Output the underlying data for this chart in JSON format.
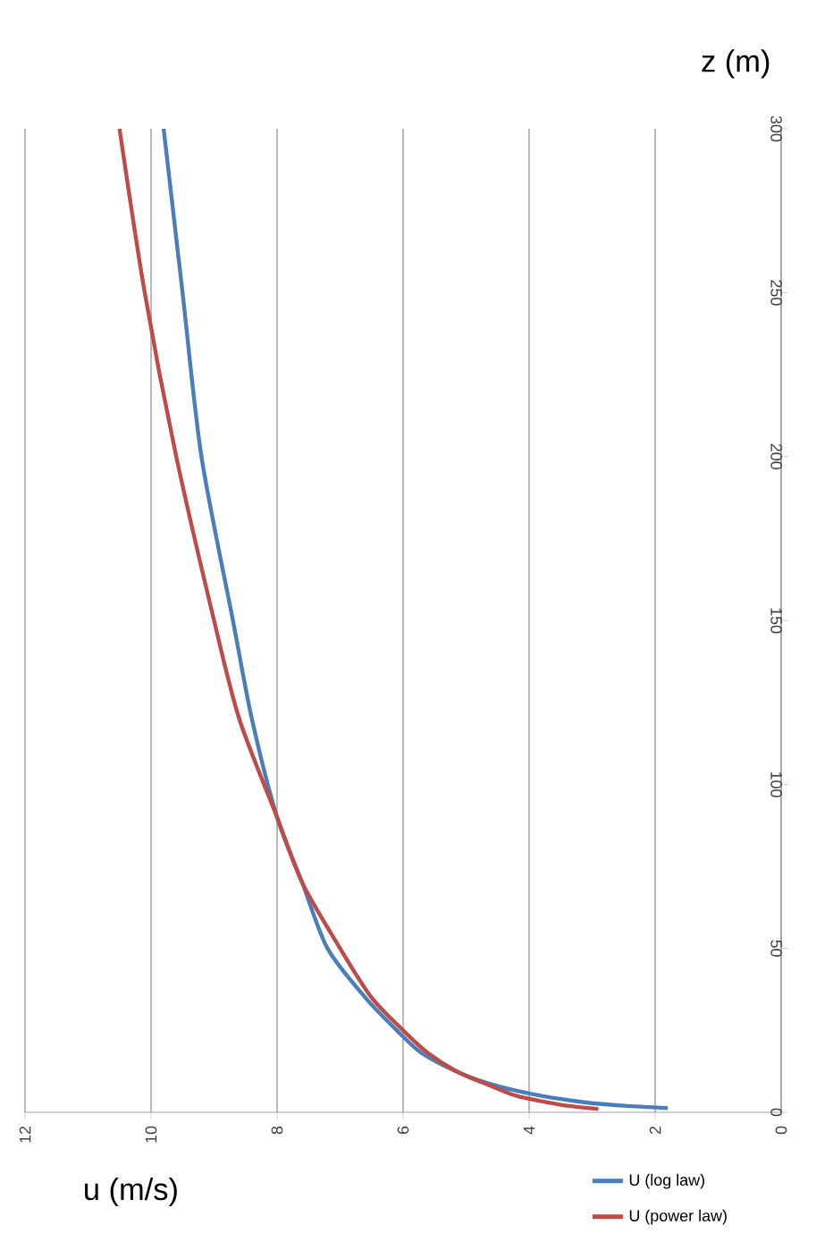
{
  "chart_data": {
    "type": "line",
    "xlabel": "u (m/s)",
    "ylabel": "z (m)",
    "xlim": [
      12,
      0
    ],
    "ylim": [
      0,
      300
    ],
    "xticks": [
      0,
      2,
      4,
      6,
      8,
      10,
      12
    ],
    "yticks": [
      0,
      50,
      100,
      150,
      200,
      250,
      300
    ],
    "grid": "x",
    "legend": "bottom right",
    "marker": "none",
    "line_style": "solid",
    "series": [
      {
        "name": "U (log law)",
        "color": "#4a7ebb",
        "x": [
          1.8,
          2.5,
          3.1,
          3.8,
          4.5,
          5.1,
          5.7,
          6.1,
          6.6,
          7.2,
          7.6,
          8.0,
          8.4,
          8.7,
          9.2,
          9.5,
          9.8
        ],
        "values": [
          1.3,
          2,
          3,
          5,
          8,
          12,
          18,
          25,
          35,
          50,
          70,
          90,
          120,
          150,
          200,
          250,
          300
        ]
      },
      {
        "name": "U (power law)",
        "color": "#be4b48",
        "x": [
          2.9,
          3.4,
          3.7,
          4.2,
          4.6,
          5.1,
          5.6,
          6.0,
          6.5,
          7.0,
          7.6,
          8.0,
          8.6,
          9.0,
          9.6,
          10.1,
          10.5
        ],
        "values": [
          1,
          2,
          3,
          5,
          8,
          12,
          18,
          25,
          35,
          50,
          70,
          90,
          120,
          150,
          200,
          250,
          300
        ]
      }
    ]
  }
}
